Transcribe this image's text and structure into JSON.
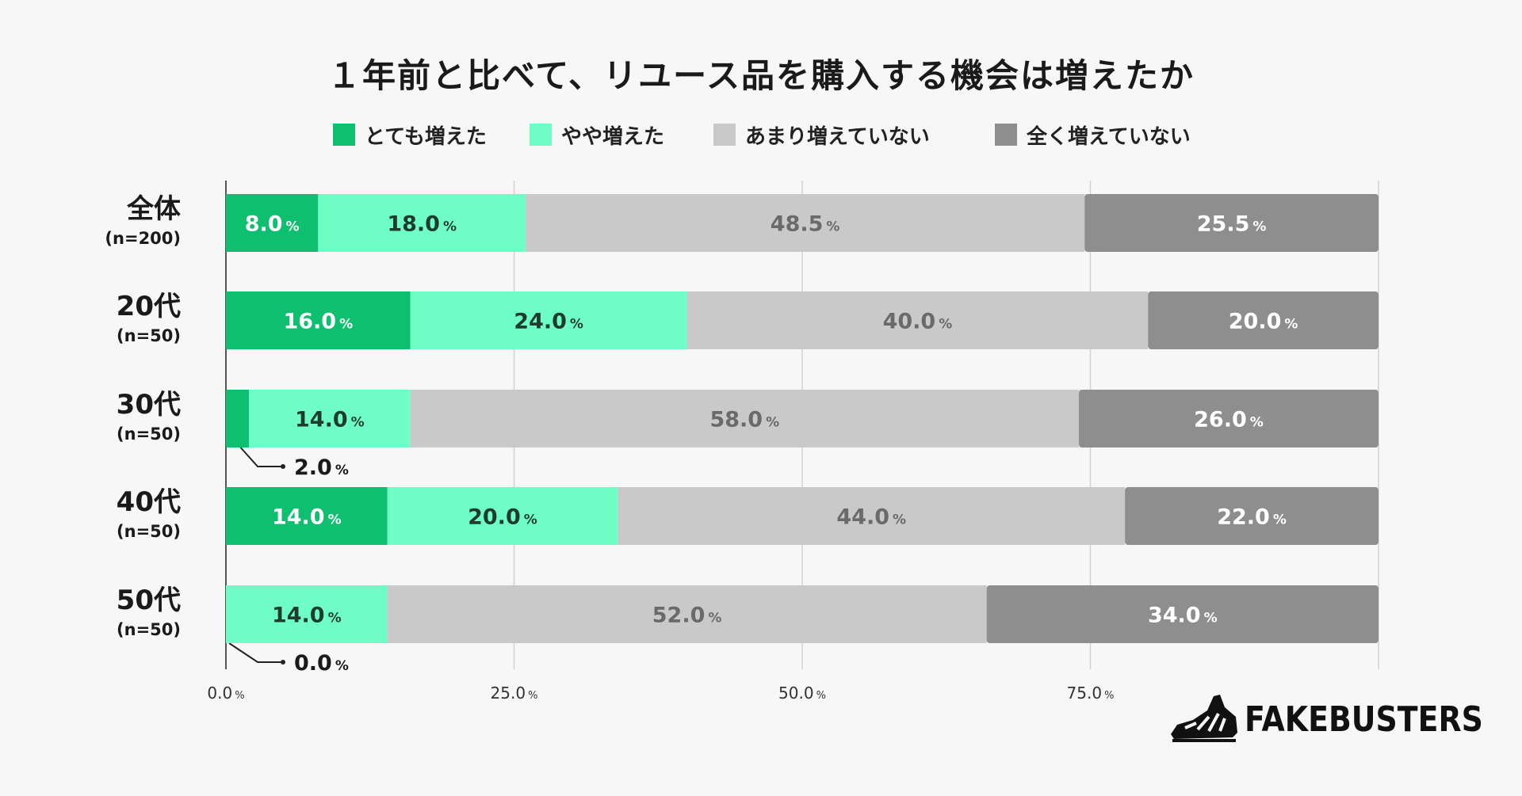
{
  "chart_data": {
    "type": "bar",
    "orientation": "horizontal",
    "stacked": true,
    "title": "１年前と比べて、リユース品を購入する機会は増えたか",
    "unit": "%",
    "categories": [
      {
        "label": "全体",
        "n": "(n=200)"
      },
      {
        "label": "20代",
        "n": "(n=50)"
      },
      {
        "label": "30代",
        "n": "(n=50)"
      },
      {
        "label": "40代",
        "n": "(n=50)"
      },
      {
        "label": "50代",
        "n": "(n=50)"
      }
    ],
    "series": [
      {
        "name": "とても増えた",
        "color": "#0dbf6e",
        "values": [
          8.0,
          16.0,
          2.0,
          14.0,
          0.0
        ]
      },
      {
        "name": "やや増えた",
        "color": "#6fffc6",
        "values": [
          18.0,
          24.0,
          14.0,
          20.0,
          14.0
        ]
      },
      {
        "name": "あまり増えていない",
        "color": "#c8c9c8",
        "values": [
          48.5,
          40.0,
          58.0,
          44.0,
          52.0
        ]
      },
      {
        "name": "全く増えていない",
        "color": "#8e8e8e",
        "values": [
          25.5,
          20.0,
          26.0,
          22.0,
          34.0
        ]
      }
    ],
    "xlim": [
      0,
      100
    ],
    "x_ticks": [
      "0.0",
      "25.0",
      "50.0",
      "75.0"
    ],
    "grid": true,
    "legend_position": "top"
  },
  "brand": {
    "name": "FAKEBUSTERS"
  }
}
